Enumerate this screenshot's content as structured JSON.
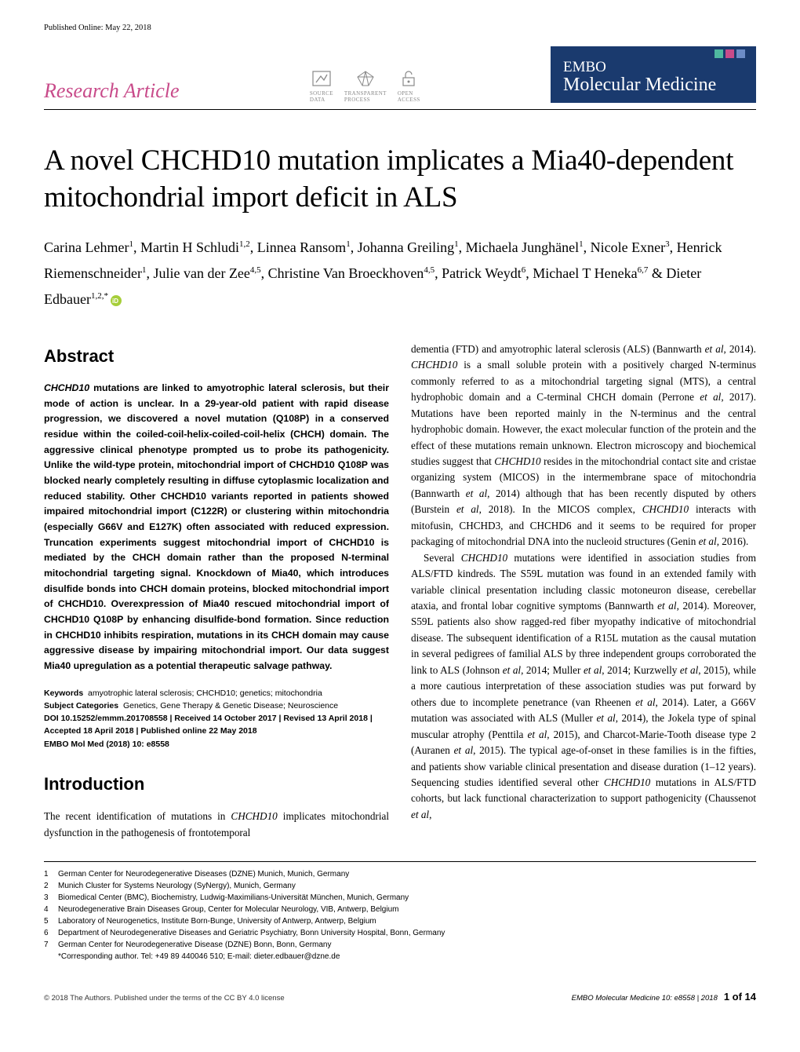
{
  "published_online": "Published Online: May 22, 2018",
  "article_type": "Research Article",
  "badges": {
    "source_data": "SOURCE\nDATA",
    "transparent": "TRANSPARENT\nPROCESS",
    "open_access": "OPEN\nACCESS"
  },
  "journal": {
    "line1": "EMBO",
    "line2": "Molecular Medicine"
  },
  "journal_colors": [
    "#4fb9a0",
    "#c84b8a",
    "#6c8cc7"
  ],
  "title": "A novel CHCHD10 mutation implicates a Mia40-dependent mitochondrial import deficit in ALS",
  "authors_html": "Carina Lehmer<sup>1</sup>, Martin H Schludi<sup>1,2</sup>, Linnea Ransom<sup>1</sup>, Johanna Greiling<sup>1</sup>, Michaela Junghänel<sup>1</sup>, Nicole Exner<sup>3</sup>, Henrick Riemenschneider<sup>1</sup>, Julie van der Zee<sup>4,5</sup>, Christine Van Broeckhoven<sup>4,5</sup>, Patrick Weydt<sup>6</sup>, Michael T Heneka<sup>6,7</sup> & Dieter Edbauer<sup>1,2,*</sup>",
  "section_abstract": "Abstract",
  "abstract": "CHCHD10 mutations are linked to amyotrophic lateral sclerosis, but their mode of action is unclear. In a 29-year-old patient with rapid disease progression, we discovered a novel mutation (Q108P) in a conserved residue within the coiled-coil-helix-coiled-coil-helix (CHCH) domain. The aggressive clinical phenotype prompted us to probe its pathogenicity. Unlike the wild-type protein, mitochondrial import of CHCHD10 Q108P was blocked nearly completely resulting in diffuse cytoplasmic localization and reduced stability. Other CHCHD10 variants reported in patients showed impaired mitochondrial import (C122R) or clustering within mitochondria (especially G66V and E127K) often associated with reduced expression. Truncation experiments suggest mitochondrial import of CHCHD10 is mediated by the CHCH domain rather than the proposed N-terminal mitochondrial targeting signal. Knockdown of Mia40, which introduces disulfide bonds into CHCH domain proteins, blocked mitochondrial import of CHCHD10. Overexpression of Mia40 rescued mitochondrial import of CHCHD10 Q108P by enhancing disulfide-bond formation. Since reduction in CHCHD10 inhibits respiration, mutations in its CHCH domain may cause aggressive disease by impairing mitochondrial import. Our data suggest Mia40 upregulation as a potential therapeutic salvage pathway.",
  "keywords_label": "Keywords",
  "keywords": "amyotrophic lateral sclerosis; CHCHD10; genetics; mitochondria",
  "subjcat_label": "Subject Categories",
  "subjcat": "Genetics, Gene Therapy & Genetic Disease; Neuroscience",
  "doi_line": "DOI 10.15252/emmm.201708558 | Received 14 October 2017 | Revised 13 April 2018 | Accepted 18 April 2018 | Published online 22 May 2018",
  "citation": "EMBO Mol Med (2018) 10: e8558",
  "section_intro": "Introduction",
  "intro_left": "The recent identification of mutations in CHCHD10 implicates mitochondrial dysfunction in the pathogenesis of frontotemporal",
  "col_right_p1": "dementia (FTD) and amyotrophic lateral sclerosis (ALS) (Bannwarth et al, 2014). CHCHD10 is a small soluble protein with a positively charged N-terminus commonly referred to as a mitochondrial targeting signal (MTS), a central hydrophobic domain and a C-terminal CHCH domain (Perrone et al, 2017). Mutations have been reported mainly in the N-terminus and the central hydrophobic domain. However, the exact molecular function of the protein and the effect of these mutations remain unknown. Electron microscopy and biochemical studies suggest that CHCHD10 resides in the mitochondrial contact site and cristae organizing system (MICOS) in the intermembrane space of mitochondria (Bannwarth et al, 2014) although that has been recently disputed by others (Burstein et al, 2018). In the MICOS complex, CHCHD10 interacts with mitofusin, CHCHD3, and CHCHD6 and it seems to be required for proper packaging of mitochondrial DNA into the nucleoid structures (Genin et al, 2016).",
  "col_right_p2": "Several CHCHD10 mutations were identified in association studies from ALS/FTD kindreds. The S59L mutation was found in an extended family with variable clinical presentation including classic motoneuron disease, cerebellar ataxia, and frontal lobar cognitive symptoms (Bannwarth et al, 2014). Moreover, S59L patients also show ragged-red fiber myopathy indicative of mitochondrial disease. The subsequent identification of a R15L mutation as the causal mutation in several pedigrees of familial ALS by three independent groups corroborated the link to ALS (Johnson et al, 2014; Muller et al, 2014; Kurzwelly et al, 2015), while a more cautious interpretation of these association studies was put forward by others due to incomplete penetrance (van Rheenen et al, 2014). Later, a G66V mutation was associated with ALS (Muller et al, 2014), the Jokela type of spinal muscular atrophy (Penttila et al, 2015), and Charcot-Marie-Tooth disease type 2 (Auranen et al, 2015). The typical age-of-onset in these families is in the fifties, and patients show variable clinical presentation and disease duration (1–12 years). Sequencing studies identified several other CHCHD10 mutations in ALS/FTD cohorts, but lack functional characterization to support pathogenicity (Chaussenot et al,",
  "affiliations": [
    "German Center for Neurodegenerative Diseases (DZNE) Munich, Munich, Germany",
    "Munich Cluster for Systems Neurology (SyNergy), Munich, Germany",
    "Biomedical Center (BMC), Biochemistry, Ludwig-Maximilians-Universität München, Munich, Germany",
    "Neurodegenerative Brain Diseases Group, Center for Molecular Neurology, VIB, Antwerp, Belgium",
    "Laboratory of Neurogenetics, Institute Born-Bunge, University of Antwerp, Antwerp, Belgium",
    "Department of Neurodegenerative Diseases and Geriatric Psychiatry, Bonn University Hospital, Bonn, Germany",
    "German Center for Neurodegenerative Disease (DZNE) Bonn, Bonn, Germany"
  ],
  "corresponding": "*Corresponding author. Tel: +49 89 440046 510; E-mail: dieter.edbauer@dzne.de",
  "footer_left": "© 2018 The Authors. Published under the terms of the CC BY 4.0 license",
  "footer_right": "EMBO Molecular Medicine   10: e8558 | 2018",
  "page_num": "1 of 14"
}
